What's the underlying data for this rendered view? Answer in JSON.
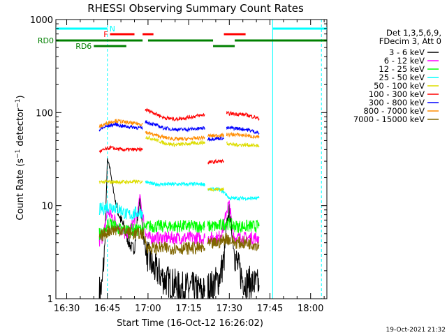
{
  "chart_data": {
    "type": "line",
    "title": "RHESSI Observing Summary Count Rates",
    "xlabel": "Start Time (16-Oct-12 16:26:02)",
    "ylabel": "Count Rate (s^-1 detector^-1)",
    "ylabel_parts": {
      "main": "Count Rate (s",
      "exp1": "−1",
      "mid": " detector",
      "exp2": "−1",
      "end": ")"
    },
    "x_units": "minutes after 16:26:02",
    "xlim": [
      0,
      100
    ],
    "ylim": [
      1,
      1000
    ],
    "yscale": "log",
    "x_ticks": [
      {
        "x": 4,
        "label": "16:30"
      },
      {
        "x": 19,
        "label": "16:45"
      },
      {
        "x": 34,
        "label": "17:00"
      },
      {
        "x": 49,
        "label": "17:15"
      },
      {
        "x": 64,
        "label": "17:30"
      },
      {
        "x": 79,
        "label": "17:45"
      },
      {
        "x": 94,
        "label": "18:00"
      }
    ],
    "y_ticks": [
      {
        "y": 1,
        "label": "1"
      },
      {
        "y": 10,
        "label": "10"
      },
      {
        "y": 100,
        "label": "100"
      },
      {
        "y": 1000,
        "label": "1000"
      }
    ],
    "legend": {
      "placement": "right",
      "header": [
        "Det 1,3,5,6,9,",
        "FDecim 3, Att 0"
      ]
    },
    "series": [
      {
        "name": "3 - 6 keV",
        "color": "#000000",
        "segments": [
          [
            [
              16,
              1.2
            ],
            [
              17,
              1.3
            ],
            [
              18,
              3.5
            ],
            [
              19,
              31
            ],
            [
              20,
              25
            ],
            [
              21,
              16
            ],
            [
              22,
              11
            ],
            [
              23,
              8.5
            ],
            [
              24,
              7
            ],
            [
              25,
              6
            ],
            [
              26,
              4.8
            ],
            [
              27,
              4
            ],
            [
              28,
              3.5
            ],
            [
              29,
              3.5
            ],
            [
              30,
              7
            ],
            [
              31,
              12
            ],
            [
              32,
              5.5
            ],
            [
              33,
              3.5
            ],
            [
              34,
              2.8
            ],
            [
              35,
              2.4
            ],
            [
              36,
              2.1
            ],
            [
              38,
              1.9
            ],
            [
              40,
              1.6
            ],
            [
              42,
              1.5
            ],
            [
              44,
              1.4
            ],
            [
              46,
              1.3
            ],
            [
              48,
              1.3
            ],
            [
              50,
              1.3
            ],
            [
              52,
              1.25
            ],
            [
              54,
              1.2
            ],
            [
              55,
              1.2
            ]
          ],
          [
            [
              56,
              1.3
            ],
            [
              58,
              1.4
            ],
            [
              60,
              1.6
            ],
            [
              62,
              2.5
            ],
            [
              63,
              6
            ],
            [
              64,
              9
            ],
            [
              65,
              5
            ],
            [
              66,
              3
            ],
            [
              67,
              2.3
            ],
            [
              68,
              1.9
            ],
            [
              69,
              1.6
            ],
            [
              70,
              1.5
            ],
            [
              72,
              1.5
            ],
            [
              74,
              1.4
            ],
            [
              75,
              1.4
            ]
          ]
        ]
      },
      {
        "name": "6 - 12 keV",
        "color": "#ff00ff",
        "segments": [
          [
            [
              16,
              4
            ],
            [
              17,
              4.5
            ],
            [
              18,
              5.5
            ],
            [
              19,
              9
            ],
            [
              20,
              8
            ],
            [
              21,
              7.5
            ],
            [
              22,
              7
            ],
            [
              23,
              6
            ],
            [
              24,
              5.5
            ],
            [
              25,
              5
            ],
            [
              26,
              5
            ],
            [
              28,
              6
            ],
            [
              30,
              8
            ],
            [
              31,
              13
            ],
            [
              32,
              8
            ],
            [
              33,
              5.5
            ],
            [
              34,
              4.5
            ],
            [
              40,
              4.5
            ],
            [
              46,
              4.5
            ],
            [
              50,
              4.5
            ],
            [
              55,
              4.5
            ]
          ],
          [
            [
              56,
              4.5
            ],
            [
              60,
              4.5
            ],
            [
              62,
              6
            ],
            [
              63,
              9
            ],
            [
              64,
              11
            ],
            [
              65,
              6
            ],
            [
              66,
              4.5
            ],
            [
              70,
              4.5
            ],
            [
              75,
              4.5
            ]
          ]
        ]
      },
      {
        "name": "12 - 25 keV",
        "color": "#00ff00",
        "segments": [
          [
            [
              16,
              5
            ],
            [
              18,
              5
            ],
            [
              19,
              6.5
            ],
            [
              20,
              6.5
            ],
            [
              22,
              6
            ],
            [
              24,
              5.5
            ],
            [
              26,
              5.5
            ],
            [
              28,
              5.5
            ],
            [
              30,
              5.5
            ],
            [
              32,
              5.5
            ],
            [
              34,
              6
            ],
            [
              40,
              6
            ],
            [
              46,
              6
            ],
            [
              50,
              6
            ],
            [
              55,
              6
            ]
          ],
          [
            [
              56,
              6
            ],
            [
              60,
              6
            ],
            [
              63,
              6.5
            ],
            [
              66,
              6
            ],
            [
              70,
              6
            ],
            [
              75,
              6
            ]
          ]
        ]
      },
      {
        "name": "25 - 50 keV",
        "color": "#00ffff",
        "segments": [
          [
            [
              16,
              9
            ],
            [
              18,
              9.5
            ],
            [
              20,
              10
            ],
            [
              22,
              9.5
            ],
            [
              24,
              9
            ],
            [
              26,
              8
            ],
            [
              28,
              8
            ],
            [
              30,
              8.5
            ],
            [
              32,
              8.5
            ]
          ],
          [
            [
              33,
              18
            ],
            [
              36,
              17
            ],
            [
              40,
              17
            ],
            [
              44,
              17
            ],
            [
              48,
              17
            ],
            [
              52,
              17
            ],
            [
              55,
              17
            ]
          ],
          [
            [
              56,
              15
            ],
            [
              60,
              15
            ],
            [
              62,
              14
            ],
            [
              63,
              13
            ],
            [
              64,
              12
            ],
            [
              66,
              12
            ],
            [
              70,
              12
            ],
            [
              75,
              12
            ]
          ]
        ]
      },
      {
        "name": "50 - 100 keV",
        "color": "#dddd00",
        "segments": [
          [
            [
              16,
              18
            ],
            [
              20,
              18
            ],
            [
              24,
              18
            ],
            [
              28,
              18
            ],
            [
              32,
              18
            ]
          ],
          [
            [
              33,
              55
            ],
            [
              36,
              52
            ],
            [
              40,
              47
            ],
            [
              44,
              45
            ],
            [
              48,
              46
            ],
            [
              52,
              47
            ],
            [
              55,
              48
            ]
          ],
          [
            [
              56,
              15
            ],
            [
              60,
              15
            ],
            [
              62,
              15
            ]
          ],
          [
            [
              63,
              47
            ],
            [
              66,
              45
            ],
            [
              70,
              45
            ],
            [
              75,
              44
            ]
          ]
        ]
      },
      {
        "name": "100 - 300 keV",
        "color": "#ff0000",
        "segments": [
          [
            [
              16,
              38
            ],
            [
              18,
              40
            ],
            [
              20,
              42
            ],
            [
              24,
              40
            ],
            [
              28,
              40
            ],
            [
              32,
              40
            ]
          ],
          [
            [
              33,
              108
            ],
            [
              36,
              100
            ],
            [
              40,
              88
            ],
            [
              44,
              85
            ],
            [
              48,
              88
            ],
            [
              52,
              92
            ],
            [
              55,
              95
            ]
          ],
          [
            [
              56,
              29
            ],
            [
              60,
              30
            ],
            [
              62,
              30
            ]
          ],
          [
            [
              63,
              98
            ],
            [
              66,
              97
            ],
            [
              70,
              95
            ],
            [
              73,
              90
            ],
            [
              75,
              86
            ]
          ]
        ]
      },
      {
        "name": "300 - 800 keV",
        "color": "#0000ff",
        "segments": [
          [
            [
              16,
              65
            ],
            [
              18,
              70
            ],
            [
              20,
              73
            ],
            [
              22,
              75
            ],
            [
              24,
              72
            ],
            [
              28,
              70
            ],
            [
              32,
              68
            ]
          ],
          [
            [
              33,
              80
            ],
            [
              36,
              75
            ],
            [
              40,
              68
            ],
            [
              44,
              66
            ],
            [
              48,
              66
            ],
            [
              52,
              67
            ],
            [
              55,
              68
            ]
          ],
          [
            [
              56,
              52
            ],
            [
              60,
              53
            ],
            [
              62,
              53
            ]
          ],
          [
            [
              63,
              68
            ],
            [
              66,
              68
            ],
            [
              70,
              66
            ],
            [
              73,
              63
            ],
            [
              75,
              60
            ]
          ]
        ]
      },
      {
        "name": "800 - 7000 keV",
        "color": "#ff8c00",
        "segments": [
          [
            [
              16,
              70
            ],
            [
              18,
              75
            ],
            [
              20,
              79
            ],
            [
              22,
              82
            ],
            [
              24,
              80
            ],
            [
              28,
              77
            ],
            [
              32,
              75
            ]
          ],
          [
            [
              33,
              62
            ],
            [
              36,
              58
            ],
            [
              40,
              54
            ],
            [
              44,
              52
            ],
            [
              48,
              52
            ],
            [
              52,
              53
            ],
            [
              55,
              54
            ]
          ],
          [
            [
              56,
              56
            ],
            [
              60,
              57
            ],
            [
              62,
              57
            ]
          ],
          [
            [
              63,
              58
            ],
            [
              66,
              58
            ],
            [
              70,
              57
            ],
            [
              73,
              55
            ],
            [
              75,
              54
            ]
          ]
        ]
      },
      {
        "name": "7000 - 15000 keV",
        "color": "#806600",
        "segments": [
          [
            [
              16,
              4.5
            ],
            [
              18,
              5
            ],
            [
              20,
              5.5
            ],
            [
              22,
              5.5
            ],
            [
              24,
              5.5
            ],
            [
              28,
              5
            ],
            [
              32,
              5
            ],
            [
              34,
              3.5
            ],
            [
              40,
              3.5
            ],
            [
              46,
              3.5
            ],
            [
              50,
              3.5
            ],
            [
              55,
              3.5
            ]
          ],
          [
            [
              56,
              3.8
            ],
            [
              60,
              4
            ],
            [
              63,
              4.5
            ],
            [
              66,
              4
            ],
            [
              70,
              4
            ],
            [
              75,
              3.8
            ]
          ]
        ]
      }
    ],
    "annotations": {
      "top_bars": [
        {
          "label": "N",
          "color": "#00ffff",
          "level": 1,
          "spans": [
            [
              0,
              19
            ],
            [
              80,
              100
            ]
          ]
        },
        {
          "label": "F",
          "color": "#ff0000",
          "level": 2,
          "spans": [
            [
              20,
              29
            ],
            [
              32,
              36
            ],
            [
              62,
              70
            ]
          ]
        },
        {
          "label": "RD0",
          "color": "#008000",
          "level": 3,
          "spans": [
            [
              0,
              32
            ],
            [
              34,
              58
            ],
            [
              66,
              100
            ]
          ]
        },
        {
          "label": "RD6",
          "color": "#008000",
          "level": 4,
          "spans": [
            [
              14,
              26
            ],
            [
              58,
              66
            ]
          ]
        }
      ],
      "vertical_lines": [
        {
          "x": 19,
          "color": "#00ffff",
          "style": "dashed"
        },
        {
          "x": 80,
          "color": "#00ffff",
          "style": "solid"
        },
        {
          "x": 98,
          "color": "#00ffff",
          "style": "dashed"
        }
      ]
    },
    "grid": false
  },
  "footer": {
    "timestamp": "19-Oct-2021 21:32"
  }
}
